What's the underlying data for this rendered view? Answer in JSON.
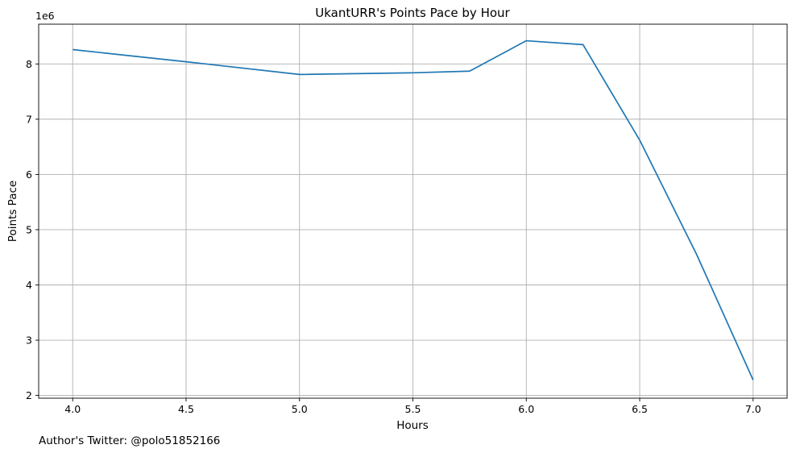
{
  "chart_data": {
    "type": "line",
    "title": "UkantURR's Points Pace by Hour",
    "xlabel": "Hours",
    "ylabel": "Points Pace",
    "y_multiplier_label": "1e6",
    "xlim": [
      3.85,
      7.15
    ],
    "ylim": [
      1.95,
      8.72
    ],
    "xticks": [
      4.0,
      4.5,
      5.0,
      5.5,
      6.0,
      6.5,
      7.0
    ],
    "xtick_labels": [
      "4.0",
      "4.5",
      "5.0",
      "5.5",
      "6.0",
      "6.5",
      "7.0"
    ],
    "yticks": [
      2,
      3,
      4,
      5,
      6,
      7,
      8
    ],
    "ytick_labels": [
      "2",
      "3",
      "4",
      "5",
      "6",
      "7",
      "8"
    ],
    "grid": true,
    "series": [
      {
        "color": "#1f77b4",
        "x": [
          4.0,
          4.5,
          5.0,
          5.5,
          5.75,
          6.0,
          6.25,
          6.5,
          6.75,
          7.0
        ],
        "y": [
          8.26,
          8.04,
          7.81,
          7.84,
          7.87,
          8.42,
          8.35,
          6.62,
          4.56,
          2.28
        ]
      }
    ]
  },
  "footer": {
    "credit": "Author's Twitter: @polo51852166"
  }
}
